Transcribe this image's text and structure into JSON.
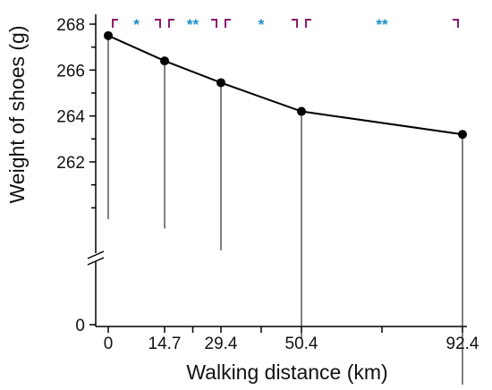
{
  "chart_data": {
    "type": "line",
    "xlabel": "Walking distance (km)",
    "ylabel": "Weight of shoes (g)",
    "x": [
      0,
      14.7,
      29.4,
      50.4,
      92.4
    ],
    "x_tick_labels": [
      "0",
      "14.7",
      "29.4",
      "50.4",
      "92.4"
    ],
    "series": [
      {
        "values": [
          267.5,
          266.4,
          265.45,
          264.2,
          263.2
        ]
      }
    ],
    "error_bars_lower": [
      259.5,
      259.1,
      258.15,
      254.3,
      252.3
    ],
    "y_ticks": [
      262,
      264,
      266,
      268
    ],
    "y_tick_labels": [
      "262",
      "264",
      "266",
      "268"
    ],
    "y_bottom_label": "0",
    "ylim": [
      0,
      268.6
    ],
    "axis_break": true,
    "significance": [
      {
        "from_index": 0,
        "to_index": 1,
        "label": "*"
      },
      {
        "from_index": 1,
        "to_index": 2,
        "label": "**"
      },
      {
        "from_index": 2,
        "to_index": 3,
        "label": "*"
      },
      {
        "from_index": 3,
        "to_index": 4,
        "label": "**"
      }
    ],
    "colors": {
      "line": "#000000",
      "marker": "#000000",
      "error_bar": "#000000",
      "bracket": "#8b1a6e",
      "significance_text": "#1a8fc6"
    }
  }
}
